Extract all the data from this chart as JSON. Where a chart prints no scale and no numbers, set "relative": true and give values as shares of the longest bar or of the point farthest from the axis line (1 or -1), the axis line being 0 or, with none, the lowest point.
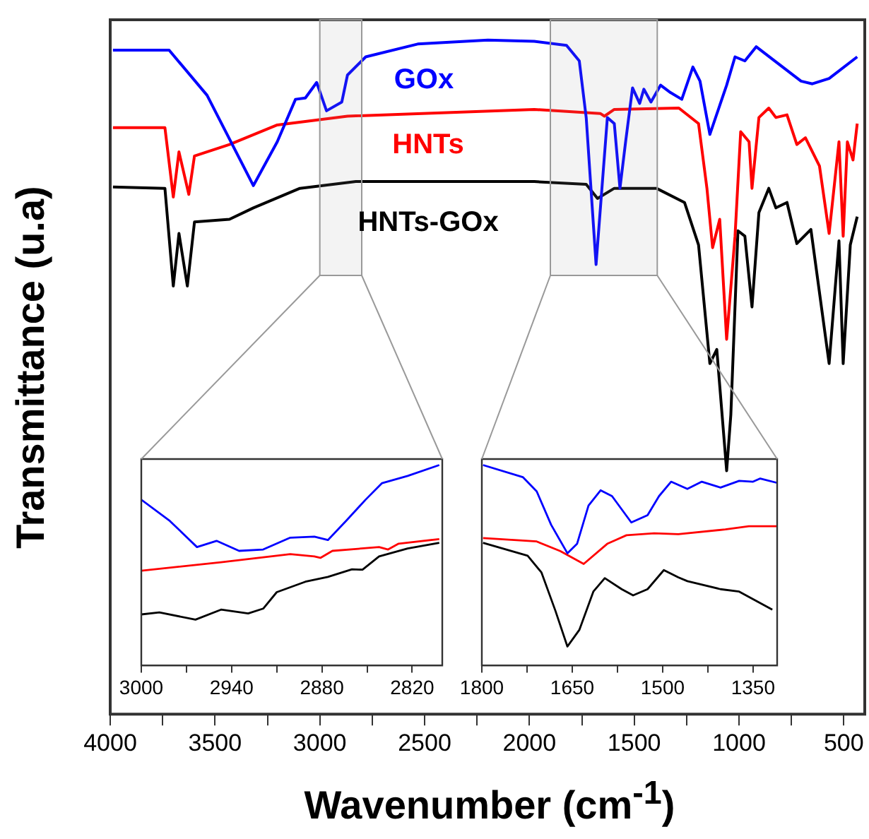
{
  "chart_data": [
    {
      "type": "line",
      "relative": true,
      "xlabel": "Wavenumber (cm$^{-1}$)",
      "ylabel": "Transmittance (u.a)",
      "xlim": [
        4000,
        400
      ],
      "xticks": [
        4000,
        {
          "value": 3750,
          "label": null
        },
        3500,
        {
          "value": 3250,
          "label": null
        },
        3000,
        {
          "value": 2750,
          "label": null
        },
        2500,
        {
          "value": 2250,
          "label": null
        },
        2000,
        {
          "value": 1750,
          "label": null
        },
        1500,
        {
          "value": 1250,
          "label": null
        },
        1000,
        {
          "value": 750,
          "label": null
        },
        500
      ],
      "bands": [
        {
          "axis": "x",
          "from": 3000,
          "to": 2800,
          "color": "#999999"
        },
        {
          "axis": "x",
          "from": 1900,
          "to": 1390,
          "color": "#999999"
        }
      ],
      "series": [
        {
          "name": "GOx",
          "color": "#0000ff",
          "x": [
            3987,
            3719,
            3538,
            3317,
            3203,
            3116,
            3069,
            3015,
            2968,
            2895,
            2868,
            2781,
            2533,
            2198,
            1977,
            1823,
            1762,
            1729,
            1682,
            1628,
            1595,
            1568,
            1541,
            1508,
            1474,
            1454,
            1420,
            1374,
            1327,
            1273,
            1220,
            1186,
            1139,
            1059,
            1019,
            972,
            918,
            838,
            704,
            650,
            570,
            436
          ],
          "values": [
            0.985,
            0.985,
            0.918,
            0.784,
            0.849,
            0.912,
            0.914,
            0.937,
            0.895,
            0.908,
            0.948,
            0.975,
            0.994,
            1.0,
            0.998,
            0.992,
            0.969,
            0.885,
            0.667,
            0.885,
            0.876,
            0.78,
            0.849,
            0.929,
            0.906,
            0.927,
            0.908,
            0.933,
            0.922,
            0.912,
            0.96,
            0.939,
            0.86,
            0.933,
            0.975,
            0.969,
            0.99,
            0.971,
            0.939,
            0.935,
            0.943,
            0.975
          ]
        },
        {
          "name": "HNTs",
          "color": "#ff0000",
          "x": [
            3987,
            3739,
            3699,
            3672,
            3625,
            3598,
            3431,
            3203,
            2868,
            1977,
            1662,
            1642,
            1595,
            1287,
            1193,
            1153,
            1126,
            1092,
            1059,
            1019,
            992,
            952,
            938,
            905,
            858,
            824,
            771,
            724,
            683,
            616,
            570,
            523,
            503,
            483,
            456,
            436
          ],
          "values": [
            0.87,
            0.87,
            0.767,
            0.834,
            0.771,
            0.828,
            0.845,
            0.874,
            0.887,
            0.897,
            0.891,
            0.887,
            0.897,
            0.899,
            0.876,
            0.78,
            0.692,
            0.734,
            0.556,
            0.709,
            0.864,
            0.849,
            0.78,
            0.885,
            0.899,
            0.885,
            0.889,
            0.845,
            0.855,
            0.813,
            0.713,
            0.849,
            0.709,
            0.849,
            0.822,
            0.876
          ]
        },
        {
          "name": "HNTs-GOx",
          "color": "#000000",
          "x": [
            3987,
            3739,
            3699,
            3672,
            3632,
            3598,
            3431,
            3317,
            3095,
            2828,
            1977,
            1729,
            1675,
            1595,
            1394,
            1260,
            1193,
            1139,
            1106,
            1059,
            1039,
            1005,
            972,
            938,
            905,
            858,
            824,
            771,
            724,
            657,
            570,
            523,
            503,
            469,
            436
          ],
          "values": [
            0.782,
            0.78,
            0.635,
            0.713,
            0.635,
            0.73,
            0.734,
            0.751,
            0.78,
            0.79,
            0.79,
            0.786,
            0.765,
            0.78,
            0.78,
            0.759,
            0.696,
            0.52,
            0.541,
            0.361,
            0.444,
            0.717,
            0.709,
            0.604,
            0.744,
            0.78,
            0.751,
            0.759,
            0.698,
            0.719,
            0.52,
            0.702,
            0.52,
            0.696,
            0.738
          ]
        }
      ]
    },
    {
      "type": "line",
      "relative": true,
      "xlim": [
        3000,
        2800
      ],
      "xticks": [
        3000,
        {
          "value": 2970,
          "label": null
        },
        2940,
        {
          "value": 2910,
          "label": null
        },
        2880,
        {
          "value": 2850,
          "label": null
        },
        2820
      ],
      "series": [
        {
          "color": "#0000ff",
          "x": [
            3000,
            2981,
            2963,
            2950,
            2935,
            2919,
            2901,
            2885,
            2876,
            2864,
            2851,
            2840,
            2823,
            2802
          ],
          "values": [
            0.827,
            0.721,
            0.591,
            0.622,
            0.572,
            0.579,
            0.638,
            0.643,
            0.626,
            0.721,
            0.827,
            0.91,
            0.946,
            1.0
          ]
        },
        {
          "color": "#ff0000",
          "x": [
            3000,
            2947,
            2901,
            2885,
            2881,
            2873,
            2842,
            2836,
            2829,
            2802
          ],
          "values": [
            0.473,
            0.515,
            0.556,
            0.544,
            0.537,
            0.572,
            0.591,
            0.579,
            0.608,
            0.631
          ]
        },
        {
          "color": "#000000",
          "x": [
            3000,
            2988,
            2964,
            2947,
            2929,
            2919,
            2910,
            2891,
            2876,
            2860,
            2853,
            2842,
            2823,
            2802
          ],
          "values": [
            0.255,
            0.265,
            0.229,
            0.279,
            0.26,
            0.284,
            0.366,
            0.418,
            0.442,
            0.48,
            0.478,
            0.544,
            0.584,
            0.612
          ]
        }
      ]
    },
    {
      "type": "line",
      "relative": true,
      "xlim": [
        1800,
        1310
      ],
      "xticks": [
        1800,
        {
          "value": 1725,
          "label": null
        },
        1650,
        {
          "value": 1575,
          "label": null
        },
        1500,
        {
          "value": 1425,
          "label": null
        },
        1350
      ],
      "series": [
        {
          "color": "#0000ff",
          "x": [
            1798,
            1732,
            1709,
            1685,
            1658,
            1642,
            1623,
            1603,
            1584,
            1552,
            1525,
            1506,
            1486,
            1459,
            1435,
            1404,
            1373,
            1350,
            1338,
            1311
          ],
          "values": [
            1.0,
            0.94,
            0.869,
            0.702,
            0.56,
            0.607,
            0.798,
            0.874,
            0.845,
            0.714,
            0.75,
            0.845,
            0.917,
            0.881,
            0.917,
            0.888,
            0.921,
            0.917,
            0.933,
            0.912
          ]
        },
        {
          "color": "#ff0000",
          "x": [
            1798,
            1709,
            1670,
            1631,
            1592,
            1560,
            1514,
            1474,
            1396,
            1357,
            1311
          ],
          "values": [
            0.636,
            0.619,
            0.571,
            0.507,
            0.607,
            0.65,
            0.66,
            0.655,
            0.679,
            0.695,
            0.695
          ]
        },
        {
          "color": "#000000",
          "x": [
            1798,
            1724,
            1701,
            1678,
            1658,
            1638,
            1615,
            1596,
            1568,
            1549,
            1525,
            1498,
            1474,
            1459,
            1404,
            1373,
            1318
          ],
          "values": [
            0.612,
            0.548,
            0.464,
            0.274,
            0.095,
            0.179,
            0.369,
            0.436,
            0.381,
            0.35,
            0.381,
            0.476,
            0.44,
            0.421,
            0.381,
            0.369,
            0.279
          ]
        }
      ]
    }
  ]
}
